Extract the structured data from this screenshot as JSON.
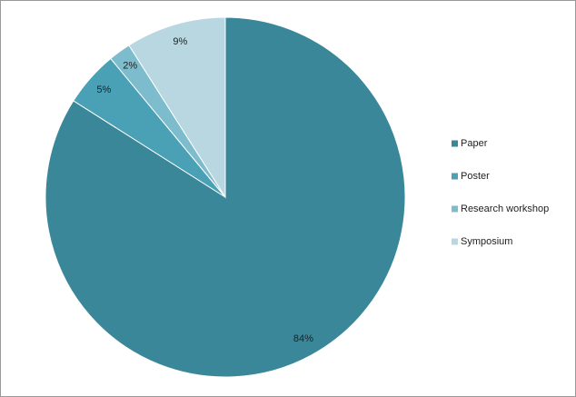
{
  "chart_data": {
    "type": "pie",
    "categories": [
      "Paper",
      "Poster",
      "Research workshop",
      "Symposium"
    ],
    "values": [
      84,
      5,
      2,
      9
    ],
    "value_labels": [
      "84%",
      "5%",
      "2%",
      "9%"
    ],
    "colors": [
      "#3a8799",
      "#4aa0b5",
      "#7cbccc",
      "#b8d7e1"
    ],
    "legend": "right"
  }
}
